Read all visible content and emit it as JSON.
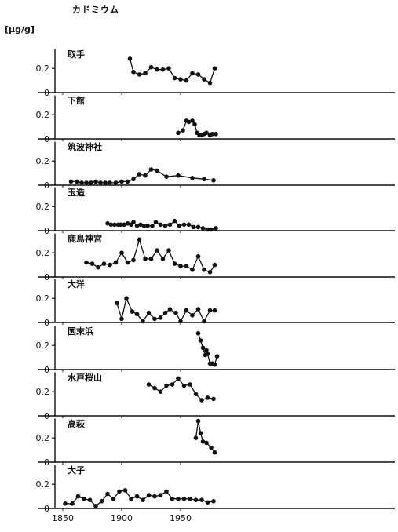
{
  "title": "カドミウム",
  "unit_label": "[μg/g]",
  "chart_data": {
    "type": "line",
    "shared_x_ticks": [
      1850,
      1900,
      1950
    ],
    "xlim": [
      1837,
      1982
    ],
    "y_ticks": [
      0,
      0.2
    ],
    "ylim": [
      0,
      0.35
    ],
    "panels": [
      {
        "name": "取手",
        "x": [
          1907,
          1910,
          1915,
          1920,
          1925,
          1930,
          1935,
          1940,
          1945,
          1950,
          1955,
          1960,
          1965,
          1970,
          1975,
          1979
        ],
        "y": [
          0.28,
          0.17,
          0.15,
          0.16,
          0.21,
          0.19,
          0.19,
          0.2,
          0.12,
          0.11,
          0.1,
          0.16,
          0.15,
          0.11,
          0.08,
          0.2
        ]
      },
      {
        "name": "下館",
        "x": [
          1948,
          1952,
          1955,
          1957,
          1960,
          1962,
          1964,
          1966,
          1968,
          1970,
          1972,
          1975,
          1977,
          1980
        ],
        "y": [
          0.05,
          0.07,
          0.15,
          0.14,
          0.15,
          0.12,
          0.05,
          0.03,
          0.03,
          0.04,
          0.05,
          0.03,
          0.04,
          0.04
        ]
      },
      {
        "name": "筑波神社",
        "x": [
          1857,
          1862,
          1866,
          1870,
          1874,
          1878,
          1882,
          1886,
          1890,
          1895,
          1900,
          1905,
          1910,
          1915,
          1920,
          1925,
          1930,
          1938,
          1948,
          1960,
          1970,
          1978
        ],
        "y": [
          0.03,
          0.03,
          0.02,
          0.02,
          0.02,
          0.03,
          0.02,
          0.02,
          0.02,
          0.02,
          0.03,
          0.03,
          0.05,
          0.09,
          0.08,
          0.13,
          0.12,
          0.07,
          0.08,
          0.06,
          0.05,
          0.04
        ]
      },
      {
        "name": "玉造",
        "x": [
          1888,
          1891,
          1894,
          1897,
          1899,
          1902,
          1905,
          1908,
          1910,
          1913,
          1916,
          1919,
          1922,
          1926,
          1929,
          1933,
          1937,
          1941,
          1945,
          1949,
          1953,
          1957,
          1961,
          1965,
          1969,
          1973,
          1976,
          1980
        ],
        "y": [
          0.06,
          0.05,
          0.05,
          0.05,
          0.05,
          0.05,
          0.06,
          0.05,
          0.07,
          0.04,
          0.05,
          0.04,
          0.04,
          0.04,
          0.07,
          0.05,
          0.04,
          0.05,
          0.08,
          0.04,
          0.05,
          0.05,
          0.03,
          0.03,
          0.02,
          0.01,
          0.01,
          0.02
        ]
      },
      {
        "name": "鹿島神宮",
        "x": [
          1870,
          1875,
          1880,
          1885,
          1890,
          1895,
          1900,
          1905,
          1910,
          1915,
          1920,
          1925,
          1930,
          1935,
          1940,
          1945,
          1950,
          1955,
          1960,
          1965,
          1970,
          1975,
          1979
        ],
        "y": [
          0.12,
          0.11,
          0.08,
          0.11,
          0.1,
          0.12,
          0.2,
          0.12,
          0.14,
          0.31,
          0.15,
          0.15,
          0.22,
          0.15,
          0.22,
          0.11,
          0.09,
          0.09,
          0.06,
          0.17,
          0.06,
          0.04,
          0.1
        ]
      },
      {
        "name": "大洋",
        "x": [
          1896,
          1900,
          1904,
          1909,
          1913,
          1918,
          1923,
          1928,
          1933,
          1937,
          1941,
          1946,
          1950,
          1955,
          1960,
          1965,
          1970,
          1975,
          1979
        ],
        "y": [
          0.16,
          0.03,
          0.2,
          0.09,
          0.07,
          0.01,
          0.08,
          0.03,
          0.04,
          0.08,
          0.11,
          0.08,
          0.01,
          0.1,
          0.06,
          0.11,
          0.01,
          0.1,
          0.1
        ]
      },
      {
        "name": "国末浜",
        "x": [
          1965,
          1967,
          1969,
          1971,
          1972,
          1973,
          1975,
          1977,
          1979,
          1981
        ],
        "y": [
          0.3,
          0.24,
          0.18,
          0.12,
          0.16,
          0.13,
          0.05,
          0.05,
          0.04,
          0.11
        ]
      },
      {
        "name": "水戸桜山",
        "x": [
          1923,
          1928,
          1933,
          1938,
          1943,
          1948,
          1953,
          1958,
          1963,
          1968,
          1973,
          1978
        ],
        "y": [
          0.26,
          0.23,
          0.2,
          0.25,
          0.26,
          0.31,
          0.25,
          0.26,
          0.18,
          0.13,
          0.15,
          0.14
        ]
      },
      {
        "name": "高萩",
        "x": [
          1963,
          1965,
          1967,
          1969,
          1972,
          1976,
          1979
        ],
        "y": [
          0.2,
          0.34,
          0.24,
          0.17,
          0.16,
          0.12,
          0.08
        ]
      },
      {
        "name": "大子",
        "x": [
          1852,
          1858,
          1863,
          1868,
          1873,
          1878,
          1883,
          1888,
          1893,
          1898,
          1903,
          1908,
          1913,
          1918,
          1923,
          1928,
          1933,
          1938,
          1943,
          1948,
          1953,
          1958,
          1963,
          1968,
          1973,
          1978
        ],
        "y": [
          0.04,
          0.04,
          0.1,
          0.08,
          0.07,
          0.02,
          0.06,
          0.12,
          0.08,
          0.14,
          0.15,
          0.08,
          0.1,
          0.07,
          0.11,
          0.1,
          0.11,
          0.14,
          0.08,
          0.08,
          0.08,
          0.08,
          0.07,
          0.07,
          0.05,
          0.06
        ]
      }
    ]
  }
}
